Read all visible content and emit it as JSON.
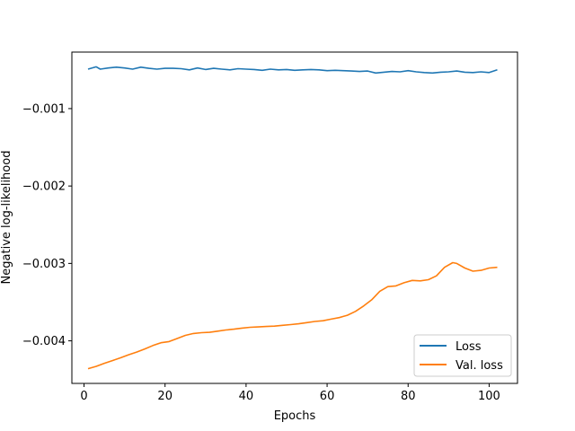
{
  "chart_data": {
    "type": "line",
    "title": "",
    "xlabel": "Epochs",
    "ylabel": "Negative log-likelihood",
    "xlim": [
      -3,
      107
    ],
    "ylim": [
      -0.00455,
      -0.00027
    ],
    "xticks": [
      0,
      20,
      40,
      60,
      80,
      100
    ],
    "xtick_labels": [
      "0",
      "20",
      "40",
      "60",
      "80",
      "100"
    ],
    "yticks": [
      -0.004,
      -0.003,
      -0.002,
      -0.001
    ],
    "ytick_labels": [
      "−0.004",
      "−0.003",
      "−0.002",
      "−0.001"
    ],
    "grid": false,
    "legend": {
      "position": "lower-right"
    },
    "series": [
      {
        "name": "Loss",
        "color": "#1f77b4",
        "points": [
          [
            1,
            -0.00049
          ],
          [
            3,
            -0.00046
          ],
          [
            4,
            -0.00049
          ],
          [
            6,
            -0.000475
          ],
          [
            8,
            -0.000465
          ],
          [
            10,
            -0.000475
          ],
          [
            12,
            -0.00049
          ],
          [
            14,
            -0.000465
          ],
          [
            16,
            -0.00048
          ],
          [
            18,
            -0.00049
          ],
          [
            20,
            -0.00048
          ],
          [
            22,
            -0.00048
          ],
          [
            24,
            -0.000485
          ],
          [
            26,
            -0.0005
          ],
          [
            28,
            -0.000475
          ],
          [
            30,
            -0.000495
          ],
          [
            32,
            -0.00048
          ],
          [
            34,
            -0.00049
          ],
          [
            36,
            -0.0005
          ],
          [
            38,
            -0.000485
          ],
          [
            40,
            -0.00049
          ],
          [
            42,
            -0.000495
          ],
          [
            44,
            -0.000505
          ],
          [
            46,
            -0.00049
          ],
          [
            48,
            -0.0005
          ],
          [
            50,
            -0.000495
          ],
          [
            52,
            -0.000505
          ],
          [
            54,
            -0.0005
          ],
          [
            56,
            -0.000495
          ],
          [
            58,
            -0.0005
          ],
          [
            60,
            -0.00051
          ],
          [
            62,
            -0.000505
          ],
          [
            64,
            -0.00051
          ],
          [
            66,
            -0.000515
          ],
          [
            68,
            -0.00052
          ],
          [
            70,
            -0.000515
          ],
          [
            72,
            -0.00054
          ],
          [
            74,
            -0.00053
          ],
          [
            76,
            -0.00052
          ],
          [
            78,
            -0.000525
          ],
          [
            80,
            -0.00051
          ],
          [
            82,
            -0.000525
          ],
          [
            84,
            -0.000535
          ],
          [
            86,
            -0.00054
          ],
          [
            88,
            -0.00053
          ],
          [
            90,
            -0.000525
          ],
          [
            92,
            -0.000515
          ],
          [
            94,
            -0.00053
          ],
          [
            96,
            -0.000535
          ],
          [
            98,
            -0.000525
          ],
          [
            100,
            -0.000535
          ],
          [
            102,
            -0.0005
          ]
        ]
      },
      {
        "name": "Val. loss",
        "color": "#ff7f0e",
        "points": [
          [
            1,
            -0.00436
          ],
          [
            3,
            -0.00433
          ],
          [
            5,
            -0.00429
          ],
          [
            7,
            -0.004255
          ],
          [
            9,
            -0.00422
          ],
          [
            11,
            -0.00418
          ],
          [
            13,
            -0.004145
          ],
          [
            15,
            -0.004105
          ],
          [
            17,
            -0.00406
          ],
          [
            19,
            -0.004025
          ],
          [
            21,
            -0.00401
          ],
          [
            23,
            -0.00397
          ],
          [
            25,
            -0.00393
          ],
          [
            27,
            -0.003905
          ],
          [
            29,
            -0.003895
          ],
          [
            31,
            -0.00389
          ],
          [
            33,
            -0.003875
          ],
          [
            35,
            -0.00386
          ],
          [
            37,
            -0.00385
          ],
          [
            39,
            -0.003835
          ],
          [
            41,
            -0.003825
          ],
          [
            43,
            -0.00382
          ],
          [
            45,
            -0.003815
          ],
          [
            47,
            -0.00381
          ],
          [
            49,
            -0.0038
          ],
          [
            51,
            -0.00379
          ],
          [
            53,
            -0.00378
          ],
          [
            55,
            -0.003765
          ],
          [
            57,
            -0.00375
          ],
          [
            59,
            -0.00374
          ],
          [
            61,
            -0.00372
          ],
          [
            63,
            -0.0037
          ],
          [
            65,
            -0.00367
          ],
          [
            67,
            -0.00362
          ],
          [
            69,
            -0.00355
          ],
          [
            71,
            -0.00347
          ],
          [
            73,
            -0.00336
          ],
          [
            75,
            -0.0033
          ],
          [
            77,
            -0.00329
          ],
          [
            79,
            -0.00325
          ],
          [
            81,
            -0.00322
          ],
          [
            83,
            -0.003225
          ],
          [
            85,
            -0.00321
          ],
          [
            87,
            -0.00316
          ],
          [
            89,
            -0.00305
          ],
          [
            91,
            -0.00299
          ],
          [
            92,
            -0.003
          ],
          [
            94,
            -0.00306
          ],
          [
            96,
            -0.0031
          ],
          [
            98,
            -0.00309
          ],
          [
            100,
            -0.00306
          ],
          [
            102,
            -0.00305
          ]
        ]
      }
    ]
  }
}
